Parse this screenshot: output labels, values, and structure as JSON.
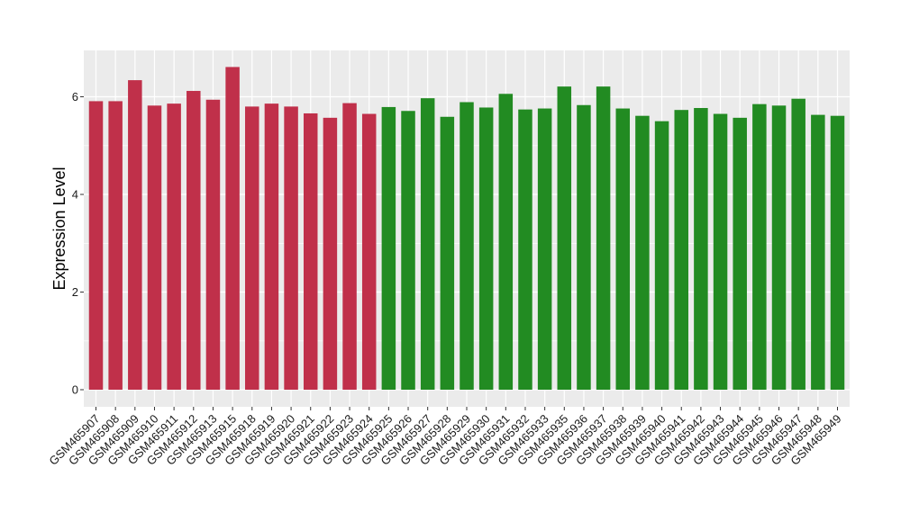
{
  "chart_data": {
    "type": "bar",
    "title": "",
    "xlabel": "",
    "ylabel": "Expression Level",
    "ylim": [
      -0.35,
      6.95
    ],
    "yticks": [
      0,
      2,
      4,
      6
    ],
    "grid": true,
    "legend": "none",
    "colors": {
      "group_a": "#C0304A",
      "group_b": "#228B22",
      "panel": "#EBEBEB",
      "gridline": "#FFFFFF"
    },
    "categories": [
      "GSM465907",
      "GSM465908",
      "GSM465909",
      "GSM465910",
      "GSM465911",
      "GSM465912",
      "GSM465913",
      "GSM465915",
      "GSM465918",
      "GSM465919",
      "GSM465920",
      "GSM465921",
      "GSM465922",
      "GSM465923",
      "GSM465924",
      "GSM465925",
      "GSM465926",
      "GSM465927",
      "GSM465928",
      "GSM465929",
      "GSM465930",
      "GSM465931",
      "GSM465932",
      "GSM465933",
      "GSM465935",
      "GSM465936",
      "GSM465937",
      "GSM465938",
      "GSM465939",
      "GSM465940",
      "GSM465941",
      "GSM465942",
      "GSM465943",
      "GSM465944",
      "GSM465945",
      "GSM465946",
      "GSM465947",
      "GSM465948",
      "GSM465949"
    ],
    "values": [
      5.91,
      5.91,
      6.34,
      5.82,
      5.86,
      6.12,
      5.94,
      6.61,
      5.8,
      5.86,
      5.8,
      5.66,
      5.57,
      5.87,
      5.65,
      5.79,
      5.71,
      5.97,
      5.59,
      5.89,
      5.78,
      6.06,
      5.74,
      5.76,
      6.21,
      5.83,
      6.21,
      5.76,
      5.61,
      5.5,
      5.73,
      5.77,
      5.65,
      5.57,
      5.85,
      5.82,
      5.96,
      5.63,
      5.61
    ],
    "groups": [
      "a",
      "a",
      "a",
      "a",
      "a",
      "a",
      "a",
      "a",
      "a",
      "a",
      "a",
      "a",
      "a",
      "a",
      "a",
      "b",
      "b",
      "b",
      "b",
      "b",
      "b",
      "b",
      "b",
      "b",
      "b",
      "b",
      "b",
      "b",
      "b",
      "b",
      "b",
      "b",
      "b",
      "b",
      "b",
      "b",
      "b",
      "b",
      "b"
    ]
  }
}
